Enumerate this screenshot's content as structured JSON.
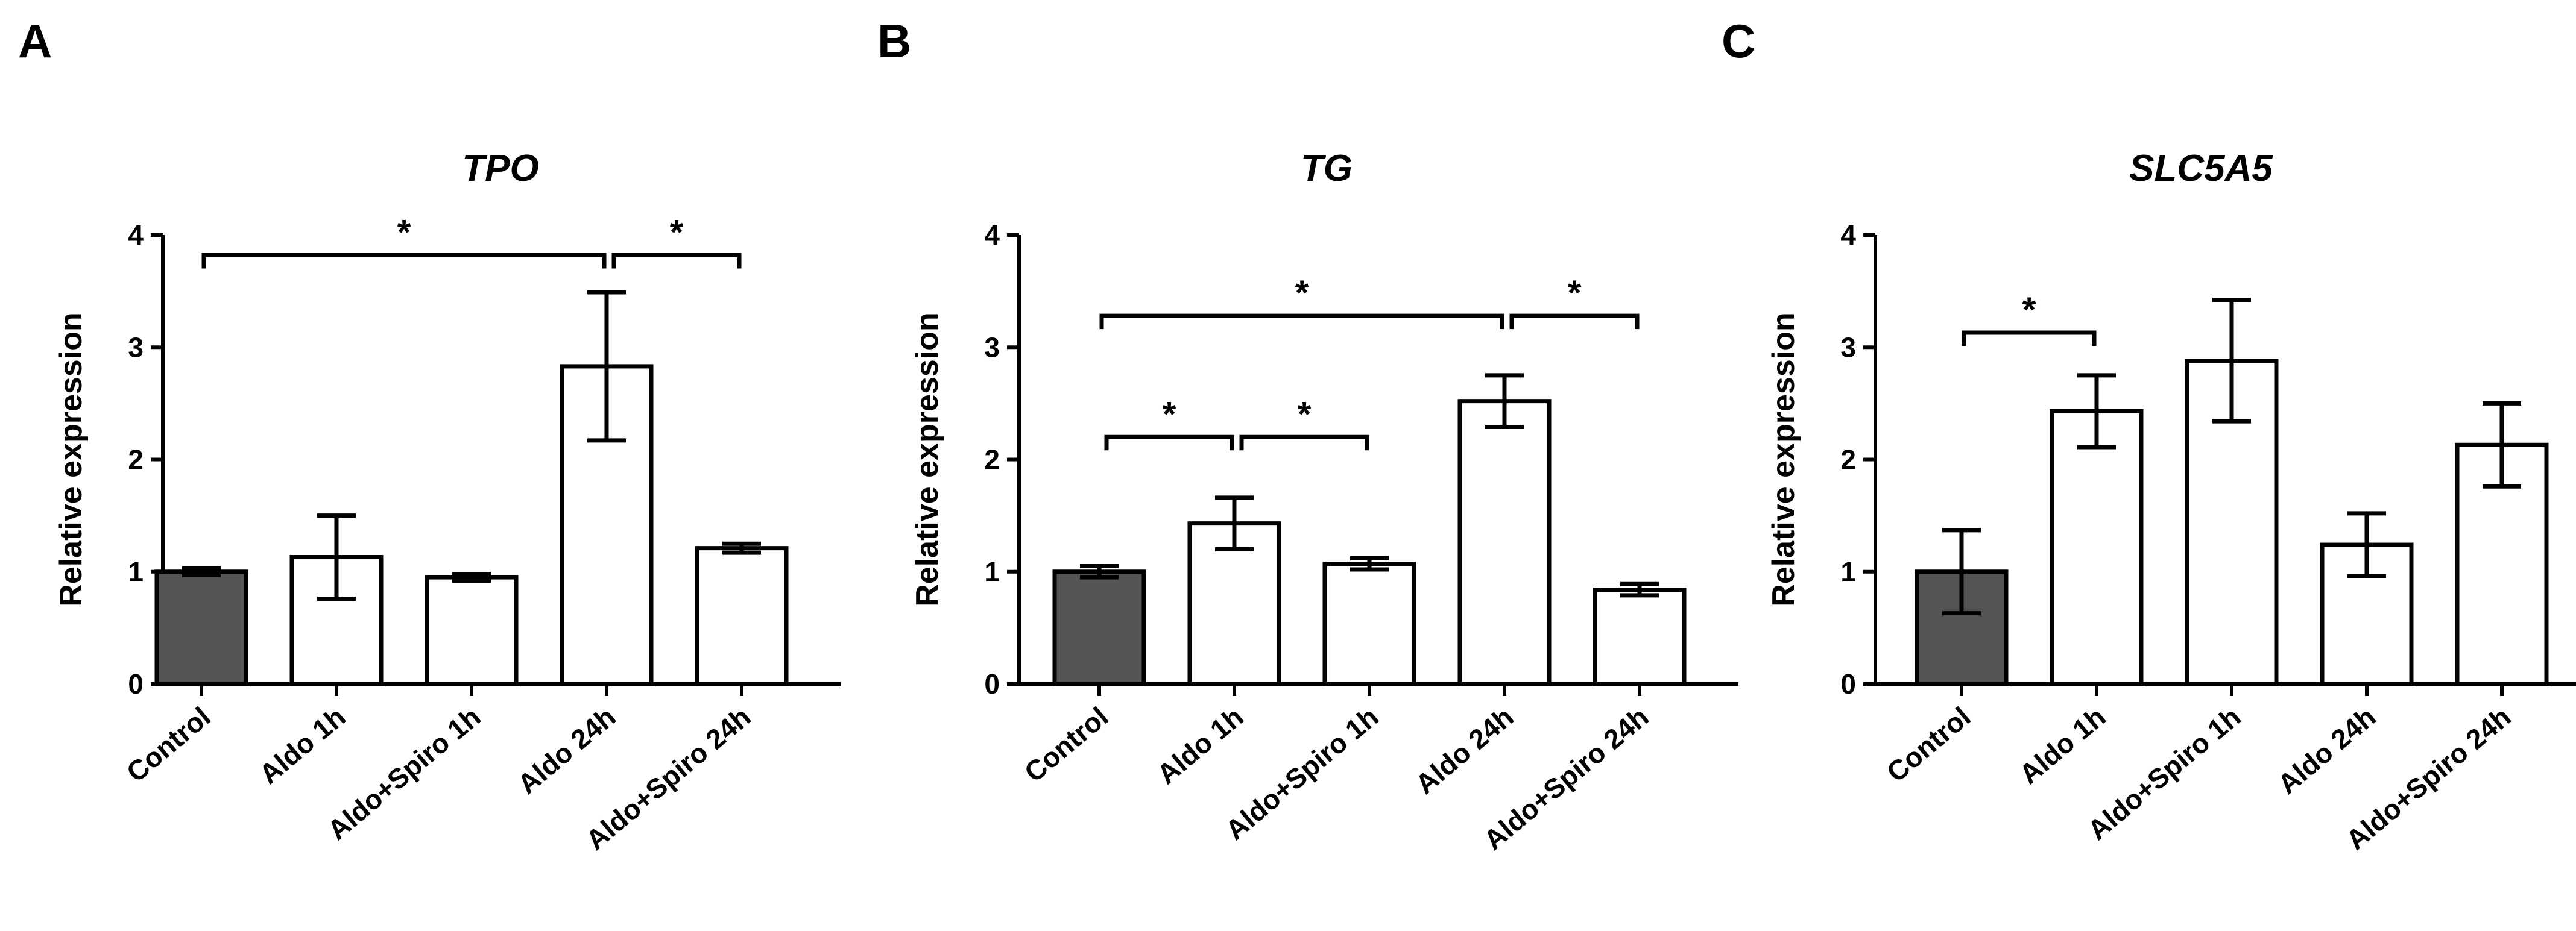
{
  "colors": {
    "control_fill": "#555555",
    "bar_fill": "#ffffff",
    "stroke": "#000000"
  },
  "chart_data": [
    {
      "type": "bar",
      "panel": "A",
      "title": "TPO",
      "ylabel": "Relative expression",
      "xlabel": "",
      "ylim": [
        0,
        4
      ],
      "yticks": [
        "0",
        "1",
        "2",
        "3",
        "4"
      ],
      "categories": [
        "Control",
        "Aldo 1h",
        "Aldo+Spiro 1h",
        "Aldo 24h",
        "Aldo+Spiro 24h"
      ],
      "values": [
        1.0,
        1.13,
        0.95,
        2.83,
        1.21
      ],
      "errors": [
        0.03,
        0.37,
        0.03,
        0.66,
        0.04
      ],
      "significance": [
        {
          "from": 0,
          "to": 3,
          "y": 3.82,
          "label": "*"
        },
        {
          "from": 3,
          "to": 4,
          "y": 3.82,
          "label": "*"
        }
      ]
    },
    {
      "type": "bar",
      "panel": "B",
      "title": "TG",
      "ylabel": "Relative expression",
      "xlabel": "",
      "ylim": [
        0,
        4
      ],
      "yticks": [
        "0",
        "1",
        "2",
        "3",
        "4"
      ],
      "categories": [
        "Control",
        "Aldo 1h",
        "Aldo+Spiro 1h",
        "Aldo 24h",
        "Aldo+Spiro 24h"
      ],
      "values": [
        1.0,
        1.43,
        1.07,
        2.52,
        0.84
      ],
      "errors": [
        0.05,
        0.23,
        0.05,
        0.23,
        0.05
      ],
      "significance": [
        {
          "from": 0,
          "to": 3,
          "y": 3.28,
          "label": "*"
        },
        {
          "from": 3,
          "to": 4,
          "y": 3.28,
          "label": "*"
        },
        {
          "from": 0,
          "to": 1,
          "y": 2.2,
          "label": "*"
        },
        {
          "from": 1,
          "to": 2,
          "y": 2.2,
          "label": "*"
        }
      ]
    },
    {
      "type": "bar",
      "panel": "C",
      "title": "SLC5A5",
      "ylabel": "Relative expression",
      "xlabel": "",
      "ylim": [
        0,
        4
      ],
      "yticks": [
        "0",
        "1",
        "2",
        "3",
        "4"
      ],
      "categories": [
        "Control",
        "Aldo 1h",
        "Aldo+Spiro 1h",
        "Aldo 24h",
        "Aldo+Spiro 24h"
      ],
      "values": [
        1.0,
        2.43,
        2.88,
        1.24,
        2.13
      ],
      "errors": [
        0.37,
        0.32,
        0.54,
        0.28,
        0.37
      ],
      "significance": [
        {
          "from": 0,
          "to": 1,
          "y": 3.13,
          "label": "*"
        }
      ]
    }
  ]
}
